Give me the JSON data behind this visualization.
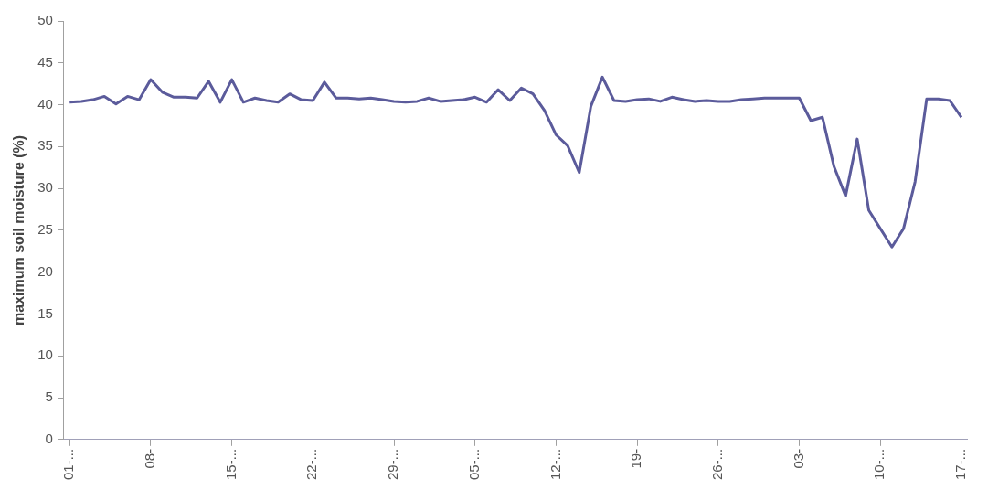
{
  "chart_data": {
    "type": "line",
    "ylabel": "maximum soil moisture (%)",
    "categories": [
      "01-...",
      null,
      null,
      null,
      null,
      null,
      null,
      "08-",
      null,
      null,
      null,
      null,
      null,
      null,
      "15-...",
      null,
      null,
      null,
      null,
      null,
      null,
      "22-...",
      null,
      null,
      null,
      null,
      null,
      null,
      "29-...",
      null,
      null,
      null,
      null,
      null,
      null,
      "05-...",
      null,
      null,
      null,
      null,
      null,
      null,
      "12-...",
      null,
      null,
      null,
      null,
      null,
      null,
      "19-",
      null,
      null,
      null,
      null,
      null,
      null,
      "26-...",
      null,
      null,
      null,
      null,
      null,
      null,
      "03-",
      null,
      null,
      null,
      null,
      null,
      null,
      "10-...",
      null,
      null,
      null,
      null,
      null,
      null,
      "17-..."
    ],
    "series": [
      {
        "color": "#5b5b9b",
        "values": [
          40.3,
          40.4,
          40.6,
          41.0,
          40.1,
          41.0,
          40.6,
          43.0,
          41.5,
          40.9,
          40.9,
          40.8,
          42.8,
          40.3,
          43.0,
          40.3,
          40.8,
          40.5,
          40.3,
          41.3,
          40.6,
          40.5,
          42.7,
          40.8,
          40.8,
          40.7,
          40.8,
          40.6,
          40.4,
          40.3,
          40.4,
          40.8,
          40.4,
          40.5,
          40.6,
          40.9,
          40.3,
          41.8,
          40.5,
          42.0,
          41.3,
          39.3,
          36.4,
          35.1,
          31.9,
          39.8,
          43.3,
          40.5,
          40.4,
          40.6,
          40.7,
          40.4,
          40.9,
          40.6,
          40.4,
          40.5,
          40.4,
          40.4,
          40.6,
          40.7,
          40.8,
          40.8,
          40.8,
          40.8,
          38.1,
          38.5,
          32.6,
          29.1,
          35.9,
          27.4,
          25.2,
          23.0,
          25.2,
          30.8,
          40.7,
          40.7,
          40.5,
          38.5
        ]
      }
    ],
    "ylim": [
      0,
      50
    ],
    "yticks": [
      0,
      5,
      10,
      15,
      20,
      25,
      30,
      35,
      40,
      45,
      50
    ],
    "grid": false,
    "legend": false,
    "marker": "none",
    "line_style": "solid"
  }
}
